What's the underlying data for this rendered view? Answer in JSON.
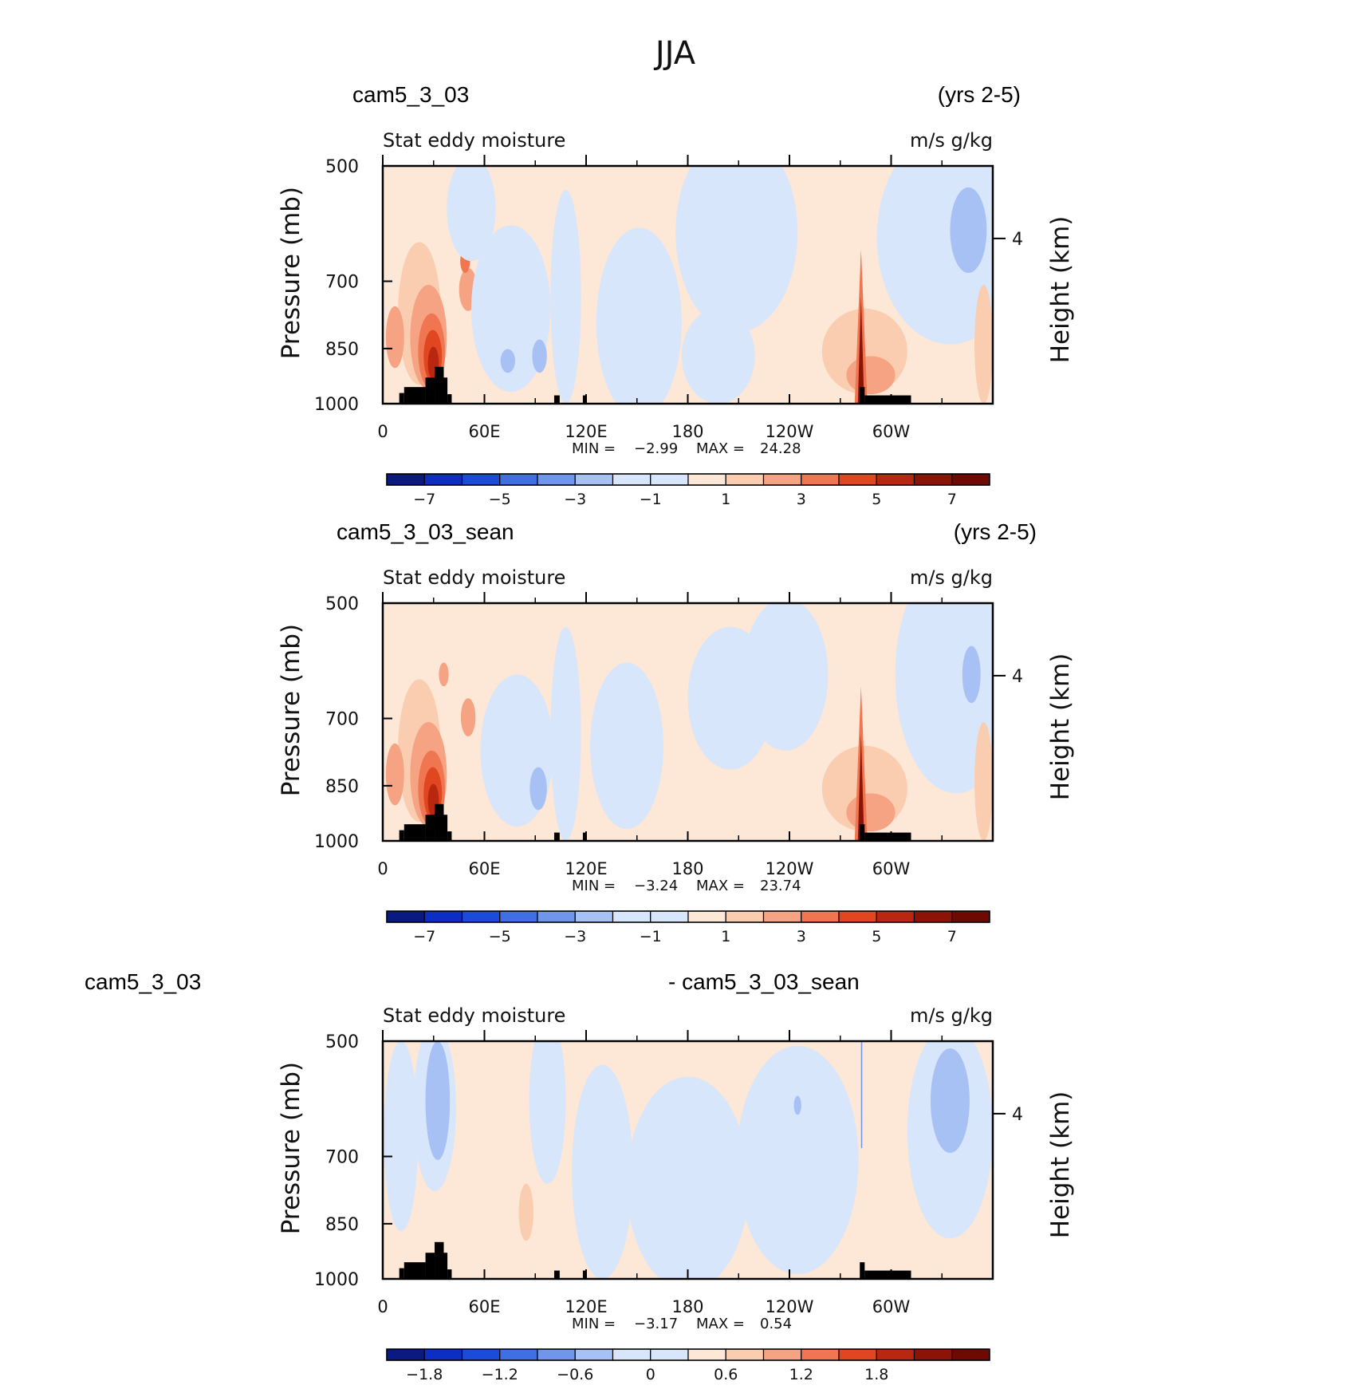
{
  "title": "JJA",
  "colors": {
    "blues": [
      "#0a1a80",
      "#0d2ec2",
      "#1a4bd9",
      "#3f6fe3",
      "#6f95ec",
      "#a7c1f5",
      "#d7e6fb"
    ],
    "reds": [
      "#fde7d6",
      "#fbcdb0",
      "#f5a383",
      "#ef7650",
      "#e0461f",
      "#b82810",
      "#8c1406",
      "#6e0a02"
    ],
    "topography": "#000000"
  },
  "chart_data": [
    {
      "type": "heatmap",
      "case_name": "cam5_3_03",
      "years": "(yrs 2-5)",
      "variable": "Stat eddy moisture",
      "units": "m/s g/kg",
      "ylabel": "Pressure (mb)",
      "ylabel_right": "Height (km)",
      "y_ticks": [
        "500",
        "700",
        "850",
        "1000"
      ],
      "y_right_ticks": [
        "4"
      ],
      "x_ticks": [
        "0",
        "60E",
        "120E",
        "180",
        "120W",
        "60W"
      ],
      "min_label": "MIN =",
      "min_value": "−2.99",
      "max_label": "MAX =",
      "max_value": "24.28",
      "colorbar_labels": [
        "−7",
        "−5",
        "−3",
        "−1",
        "1",
        "3",
        "5",
        "7"
      ],
      "colorbar_levels": [
        -8,
        -7,
        -6,
        -5,
        -4,
        -3,
        -2,
        -1,
        0,
        1,
        2,
        3,
        4,
        5,
        6,
        7,
        8
      ],
      "variant": "base"
    },
    {
      "type": "heatmap",
      "case_name": "cam5_3_03_sean",
      "years": "(yrs 2-5)",
      "variable": "Stat eddy moisture",
      "units": "m/s g/kg",
      "ylabel": "Pressure (mb)",
      "ylabel_right": "Height (km)",
      "y_ticks": [
        "500",
        "700",
        "850",
        "1000"
      ],
      "y_right_ticks": [
        "4"
      ],
      "x_ticks": [
        "0",
        "60E",
        "120E",
        "180",
        "120W",
        "60W"
      ],
      "min_label": "MIN =",
      "min_value": "−3.24",
      "max_label": "MAX =",
      "max_value": "23.74",
      "colorbar_labels": [
        "−7",
        "−5",
        "−3",
        "−1",
        "1",
        "3",
        "5",
        "7"
      ],
      "colorbar_levels": [
        -8,
        -7,
        -6,
        -5,
        -4,
        -3,
        -2,
        -1,
        0,
        1,
        2,
        3,
        4,
        5,
        6,
        7,
        8
      ],
      "variant": "base"
    },
    {
      "type": "heatmap",
      "case_name": "cam5_3_03",
      "case_name_right": "- cam5_3_03_sean",
      "variable": "Stat eddy moisture",
      "units": "m/s g/kg",
      "ylabel": "Pressure (mb)",
      "ylabel_right": "Height (km)",
      "y_ticks": [
        "500",
        "700",
        "850",
        "1000"
      ],
      "y_right_ticks": [
        "4"
      ],
      "x_ticks": [
        "0",
        "60E",
        "120E",
        "180",
        "120W",
        "60W"
      ],
      "min_label": "MIN =",
      "min_value": "−3.17",
      "max_label": "MAX =",
      "max_value": "0.54",
      "colorbar_labels": [
        "−1.8",
        "−1.2",
        "−0.6",
        "0",
        "0.6",
        "1.2",
        "1.8"
      ],
      "colorbar_levels": [
        -2.4,
        -2.1,
        -1.8,
        -1.5,
        -1.2,
        -0.9,
        -0.6,
        -0.3,
        0,
        0.3,
        0.6,
        0.9,
        1.2,
        1.5,
        1.8,
        2.1,
        2.4
      ],
      "variant": "diff"
    }
  ]
}
